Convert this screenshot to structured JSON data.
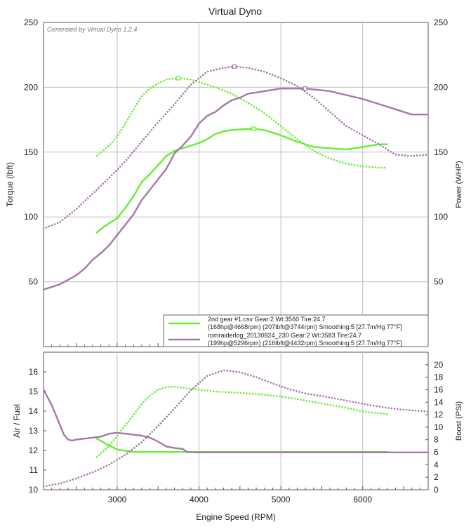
{
  "app": {
    "generated_by": "Generated by Virtual Dyno 1.2.4"
  },
  "colors": {
    "run1": "#66ee33",
    "run2": "#a577aa",
    "grid": "#bdbdbd",
    "frame": "#555555"
  },
  "chart_data": [
    {
      "type": "line",
      "title": "Virtual Dyno",
      "xlabel": "",
      "ylabel": "Torque (lbft)",
      "y2label": "Power (WHP)",
      "xlim": [
        2100,
        6800
      ],
      "ylim": [
        0,
        250
      ],
      "y2lim": [
        0,
        250
      ],
      "xticks": [
        3000,
        4000,
        5000,
        6000
      ],
      "yticks": [
        50,
        100,
        150,
        200,
        250
      ],
      "y2ticks": [
        50,
        100,
        150,
        200,
        250
      ],
      "series": [
        {
          "name": "2nd gear #1.csv torque",
          "run": 1,
          "axis": "y2",
          "style": "dotted",
          "marker_at": 3744,
          "x": [
            2750,
            2900,
            3000,
            3100,
            3200,
            3300,
            3400,
            3500,
            3600,
            3744,
            3900,
            4000,
            4200,
            4400,
            4600,
            4800,
            5000,
            5200,
            5400,
            5600,
            5800,
            6000,
            6200,
            6300
          ],
          "y": [
            147,
            155,
            162,
            172,
            183,
            193,
            199,
            203,
            206,
            207,
            206,
            204,
            200,
            195,
            188,
            180,
            170,
            160,
            151,
            145,
            141,
            139,
            138,
            138
          ]
        },
        {
          "name": "2nd gear #1.csv power",
          "run": 1,
          "axis": "y",
          "style": "solid",
          "marker_at": 4668,
          "x": [
            2750,
            2850,
            3000,
            3100,
            3200,
            3300,
            3400,
            3500,
            3600,
            3700,
            3800,
            3900,
            4000,
            4100,
            4200,
            4300,
            4400,
            4500,
            4668,
            4800,
            5000,
            5200,
            5400,
            5600,
            5800,
            6000,
            6200,
            6300
          ],
          "y": [
            88,
            93,
            99,
            107,
            116,
            127,
            133,
            140,
            147,
            151,
            153,
            155,
            157,
            160,
            164,
            166,
            167,
            167.5,
            168,
            167,
            163,
            158,
            154,
            153,
            152,
            154,
            156,
            156
          ]
        },
        {
          "name": "romraiderlog_20130824_230 torque",
          "run": 2,
          "axis": "y2",
          "style": "dotted",
          "marker_at": 4432,
          "x": [
            2100,
            2300,
            2500,
            2700,
            2900,
            3100,
            3300,
            3500,
            3700,
            3900,
            4100,
            4300,
            4432,
            4600,
            4800,
            5000,
            5200,
            5400,
            5600,
            5800,
            6000,
            6200,
            6400,
            6600,
            6800
          ],
          "y": [
            91,
            96,
            106,
            118,
            130,
            143,
            158,
            173,
            187,
            202,
            212,
            215,
            216,
            215,
            212,
            207,
            201,
            192,
            181,
            170,
            163,
            156,
            148,
            147,
            148
          ]
        },
        {
          "name": "romraiderlog_20130824_230 power",
          "run": 2,
          "axis": "y",
          "style": "solid",
          "marker_at": 5296,
          "x": [
            2100,
            2300,
            2500,
            2600,
            2700,
            2800,
            2900,
            3000,
            3100,
            3200,
            3300,
            3400,
            3500,
            3600,
            3700,
            3800,
            3900,
            4000,
            4100,
            4200,
            4300,
            4400,
            4500,
            4600,
            4800,
            5000,
            5296,
            5600,
            5800,
            6000,
            6200,
            6400,
            6600,
            6800
          ],
          "y": [
            44,
            48,
            55,
            60,
            67,
            72,
            78,
            86,
            94,
            102,
            113,
            121,
            129,
            137,
            149,
            155,
            162,
            172,
            178,
            181,
            186,
            190,
            192,
            195,
            197,
            199,
            199,
            197,
            194,
            191,
            187,
            183,
            179,
            179
          ]
        }
      ],
      "legend": {
        "placement": "bottom-right",
        "entries": [
          {
            "run": 1,
            "line1": "2nd gear #1.csv Gear:2 Wt:3560 Tire:24.7",
            "line2": "(168hp@4668rpm) (207lbft@3744rpm) Smoothing:5 [27.7in/Hg 77°F]"
          },
          {
            "run": 2,
            "line1": "romraiderlog_20130824_230 Gear:2 Wt:3583 Tire:24.7",
            "line2": "(199hp@5296rpm) (216lbft@4432rpm) Smoothing:5 [27.7in/Hg 77°F]"
          }
        ]
      }
    },
    {
      "type": "line",
      "title": "",
      "xlabel": "Engine Speed (RPM)",
      "ylabel": "Air / Fuel",
      "y2label": "Boost (PSI)",
      "xlim": [
        2100,
        6800
      ],
      "ylim": [
        10,
        17
      ],
      "y2lim": [
        0,
        22
      ],
      "xticks": [
        3000,
        4000,
        5000,
        6000
      ],
      "yticks": [
        10,
        11,
        12,
        13,
        14,
        15,
        16
      ],
      "y2ticks": [
        0,
        2,
        4,
        6,
        8,
        10,
        12,
        14,
        16,
        18,
        20
      ],
      "series": [
        {
          "name": "2nd gear #1.csv air/fuel",
          "run": 1,
          "axis": "y",
          "style": "solid",
          "x": [
            2750,
            2900,
            3000,
            3100,
            3200,
            3300,
            3500,
            4000,
            5000,
            6000,
            6300
          ],
          "y": [
            12.6,
            12.25,
            12.05,
            11.98,
            11.93,
            11.92,
            11.92,
            11.92,
            11.92,
            11.92,
            11.92
          ]
        },
        {
          "name": "2nd gear #1.csv boost",
          "run": 1,
          "axis": "y2",
          "style": "dotted",
          "x": [
            2750,
            2900,
            3000,
            3100,
            3200,
            3300,
            3400,
            3500,
            3600,
            3700,
            3800,
            4000,
            4200,
            4500,
            4800,
            5000,
            5200,
            5500,
            5800,
            6000,
            6300
          ],
          "y": [
            5.2,
            7,
            8.6,
            10.3,
            12,
            13.7,
            15.1,
            16,
            16.4,
            16.5,
            16.3,
            16.0,
            15.7,
            15.5,
            15.2,
            14.9,
            14.5,
            13.8,
            13.1,
            12.5,
            12.1
          ]
        },
        {
          "name": "romraiderlog_20130824_230 air/fuel",
          "run": 2,
          "axis": "y",
          "style": "solid",
          "x": [
            2100,
            2200,
            2300,
            2350,
            2400,
            2450,
            2500,
            2600,
            2700,
            2800,
            2900,
            3000,
            3100,
            3200,
            3300,
            3400,
            3500,
            3600,
            3700,
            3800,
            3850,
            4000,
            5000,
            6000,
            6800
          ],
          "y": [
            15.1,
            14.3,
            13.3,
            12.8,
            12.55,
            12.5,
            12.55,
            12.6,
            12.65,
            12.7,
            12.85,
            12.9,
            12.85,
            12.8,
            12.75,
            12.65,
            12.45,
            12.2,
            12.12,
            12.08,
            11.92,
            11.9,
            11.9,
            11.9,
            11.9
          ]
        },
        {
          "name": "romraiderlog_20130824_230 boost",
          "run": 2,
          "axis": "y2",
          "style": "dotted",
          "x": [
            2100,
            2300,
            2500,
            2700,
            2900,
            3100,
            3300,
            3500,
            3700,
            3900,
            4100,
            4300,
            4500,
            4700,
            4900,
            5100,
            5300,
            5500,
            5700,
            5900,
            6100,
            6300,
            6500,
            6700,
            6800
          ],
          "y": [
            0.5,
            1.0,
            1.8,
            2.8,
            4.0,
            5.6,
            7.6,
            10.2,
            13.0,
            15.9,
            18.2,
            19.1,
            18.8,
            18.0,
            17.0,
            16.1,
            15.4,
            15.0,
            14.5,
            14.0,
            13.5,
            13.1,
            12.8,
            12.6,
            12.5
          ]
        }
      ]
    }
  ]
}
